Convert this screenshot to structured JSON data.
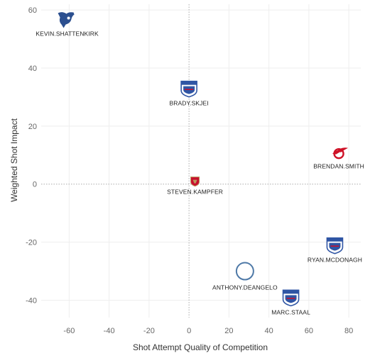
{
  "chart_data": {
    "type": "scatter",
    "title": "",
    "xlabel": "Shot Attempt Quality of Competition",
    "ylabel": "Weighted Shot Impact",
    "xlim": [
      -74,
      86
    ],
    "ylim": [
      -46,
      62
    ],
    "xticks": [
      -60,
      -40,
      -20,
      0,
      20,
      40,
      60,
      80
    ],
    "yticks": [
      -40,
      -20,
      0,
      20,
      40,
      60
    ],
    "grid": true,
    "reference_lines": {
      "x": 0,
      "y": 0,
      "style": "dotted"
    },
    "points": [
      {
        "label": "KEVIN.SHATTENKIRK",
        "x": -61,
        "y": 57,
        "marker": "blues-logo"
      },
      {
        "label": "BRADY.SKJEI",
        "x": 0,
        "y": 33,
        "marker": "rangers-logo"
      },
      {
        "label": "BRENDAN.SMITH",
        "x": 75,
        "y": 11,
        "marker": "red-wings-logo"
      },
      {
        "label": "STEVEN.KAMPFER",
        "x": 3,
        "y": 1,
        "marker": "panthers-logo"
      },
      {
        "label": "RYAN.MCDONAGH",
        "x": 73,
        "y": -21,
        "marker": "rangers-logo"
      },
      {
        "label": "ANTHONY.DEANGELO",
        "x": 28,
        "y": -30,
        "marker": "open-circle"
      },
      {
        "label": "MARC.STAAL",
        "x": 51,
        "y": -39,
        "marker": "rangers-logo"
      }
    ]
  },
  "colors": {
    "blues": "#2b4f8f",
    "rangers_blue": "#2f55a4",
    "rangers_red": "#c8102e",
    "red_wings": "#ce1126",
    "panthers_red": "#c8102e",
    "panthers_gold": "#b9975b",
    "circle": "#4e79a7",
    "grid": "#eeeeee",
    "refline": "#aaaaaa"
  }
}
